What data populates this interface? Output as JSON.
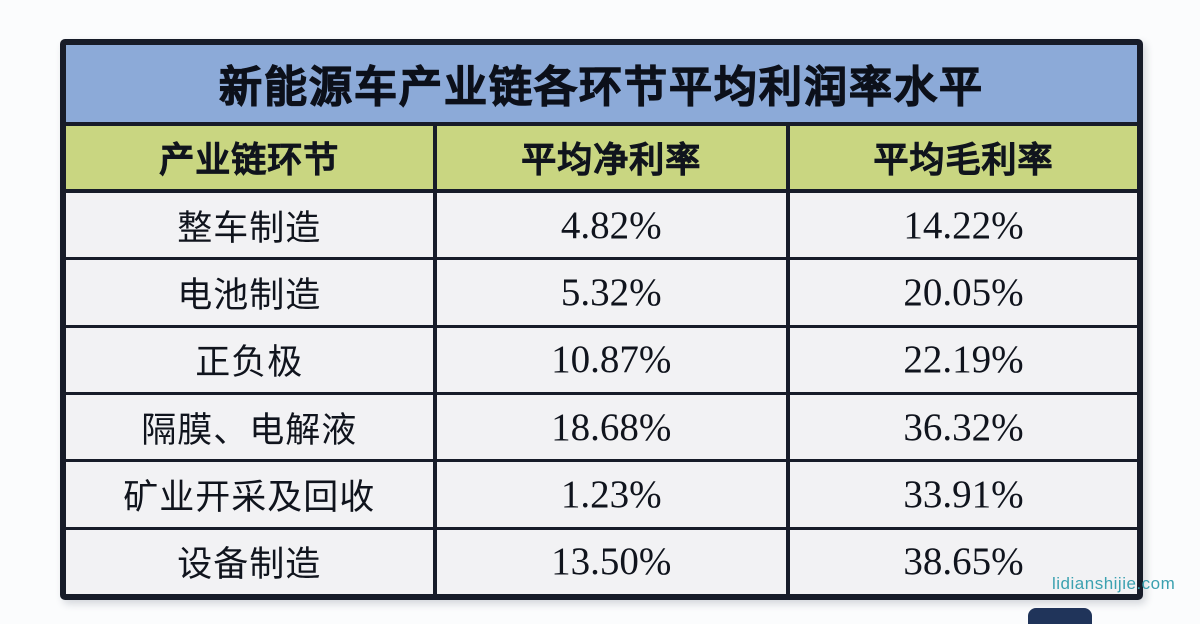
{
  "page": {
    "watermark": "lidianshijie.com"
  },
  "table": {
    "title": "新能源车产业链各环节平均利润率水平",
    "columns": {
      "segment": "产业链环节",
      "net_margin": "平均净利率",
      "gross_margin": "平均毛利率"
    },
    "rows": [
      {
        "segment": "整车制造",
        "net_margin": "4.82%",
        "gross_margin": "14.22%"
      },
      {
        "segment": "电池制造",
        "net_margin": "5.32%",
        "gross_margin": "20.05%"
      },
      {
        "segment": "正负极",
        "net_margin": "10.87%",
        "gross_margin": "22.19%"
      },
      {
        "segment": "隔膜、电解液",
        "net_margin": "18.68%",
        "gross_margin": "36.32%"
      },
      {
        "segment": "矿业开采及回收",
        "net_margin": "1.23%",
        "gross_margin": "33.91%"
      },
      {
        "segment": "设备制造",
        "net_margin": "13.50%",
        "gross_margin": "38.65%"
      }
    ],
    "colors": {
      "title_bg": "#8caad8",
      "header_bg": "#c9d681",
      "row_bg": "#f2f2f4",
      "border": "#171c29",
      "watermark": "#3ba1b0"
    }
  },
  "chart_data": {
    "type": "table",
    "title": "新能源车产业链各环节平均利润率水平",
    "columns": [
      "产业链环节",
      "平均净利率",
      "平均毛利率"
    ],
    "categories": [
      "整车制造",
      "电池制造",
      "正负极",
      "隔膜、电解液",
      "矿业开采及回收",
      "设备制造"
    ],
    "series": [
      {
        "name": "平均净利率",
        "values": [
          4.82,
          5.32,
          10.87,
          18.68,
          1.23,
          13.5
        ]
      },
      {
        "name": "平均毛利率",
        "values": [
          14.22,
          20.05,
          22.19,
          36.32,
          33.91,
          38.65
        ]
      }
    ],
    "unit": "%"
  }
}
